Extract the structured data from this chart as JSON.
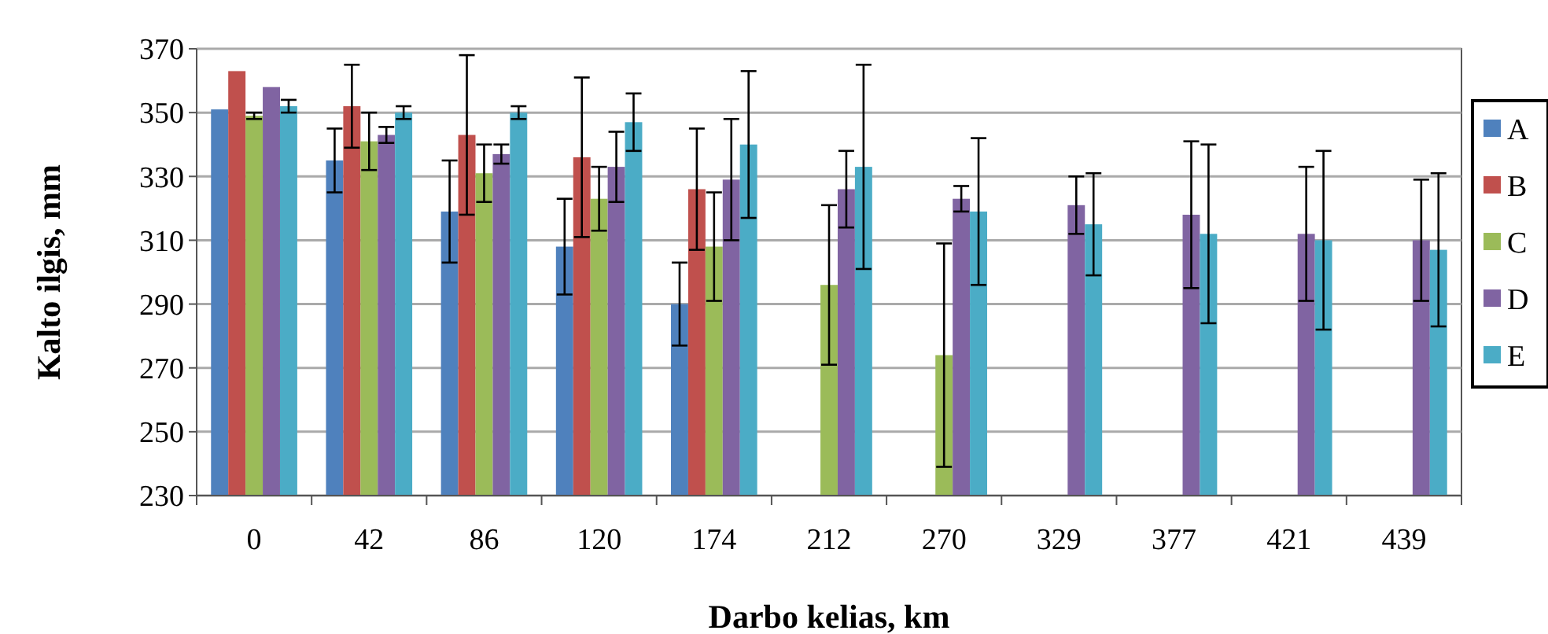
{
  "chart_data": {
    "type": "bar",
    "xlabel": "Darbo kelias, km",
    "ylabel": "Kalto ilgis, mm",
    "categories": [
      "0",
      "42",
      "86",
      "120",
      "174",
      "212",
      "270",
      "329",
      "377",
      "421",
      "439"
    ],
    "ylim": [
      230,
      370
    ],
    "yticks": [
      230,
      250,
      270,
      290,
      310,
      330,
      350,
      370
    ],
    "grid": "y",
    "legend": "right",
    "series": [
      {
        "name": "A",
        "color": "#4f81bd",
        "values": [
          351,
          335,
          319,
          308,
          290,
          null,
          null,
          null,
          null,
          null,
          null
        ],
        "errors": [
          null,
          10,
          16,
          15,
          13,
          null,
          null,
          null,
          null,
          null,
          null
        ]
      },
      {
        "name": "B",
        "color": "#c0504d",
        "values": [
          363,
          352,
          343,
          336,
          326,
          null,
          null,
          null,
          null,
          null,
          null
        ],
        "errors": [
          null,
          13,
          25,
          25,
          19,
          null,
          null,
          null,
          null,
          null,
          null
        ]
      },
      {
        "name": "C",
        "color": "#9bbb59",
        "values": [
          349,
          341,
          331,
          323,
          308,
          296,
          274,
          null,
          null,
          null,
          null
        ],
        "errors": [
          1,
          9,
          9,
          10,
          17,
          25,
          35,
          null,
          null,
          null,
          null
        ]
      },
      {
        "name": "D",
        "color": "#8064a2",
        "values": [
          358,
          343,
          337,
          333,
          329,
          326,
          323,
          321,
          318,
          312,
          310
        ],
        "errors": [
          null,
          2.5,
          3,
          11,
          19,
          12,
          4,
          9,
          23,
          21,
          19
        ]
      },
      {
        "name": "E",
        "color": "#4bacc6",
        "values": [
          352,
          350,
          350,
          347,
          340,
          333,
          319,
          315,
          312,
          310,
          307
        ],
        "errors": [
          2,
          2,
          2,
          9,
          23,
          32,
          23,
          16,
          28,
          28,
          24
        ]
      }
    ]
  }
}
